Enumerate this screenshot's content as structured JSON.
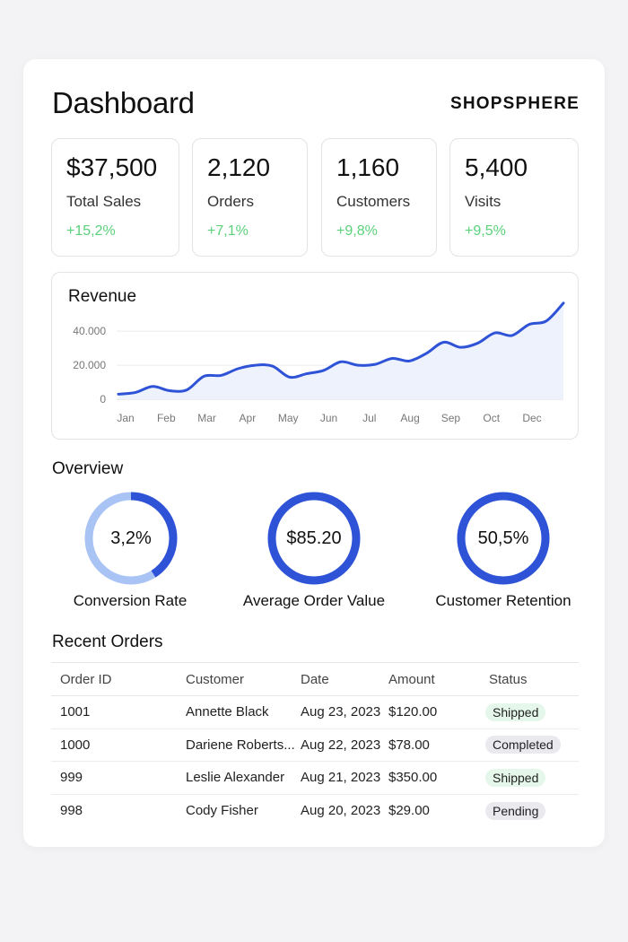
{
  "header": {
    "title": "Dashboard",
    "brand": "SHOPSPHERE"
  },
  "stats": [
    {
      "value": "$37,500",
      "label": "Total Sales",
      "change": "+15,2%"
    },
    {
      "value": "2,120",
      "label": "Orders",
      "change": "+7,1%"
    },
    {
      "value": "1,160",
      "label": "Customers",
      "change": "+9,8%"
    },
    {
      "value": "5,400",
      "label": "Visits",
      "change": "+9,5%"
    }
  ],
  "revenue": {
    "title": "Revenue"
  },
  "chart_data": {
    "type": "area",
    "title": "Revenue",
    "xlabel": "",
    "ylabel": "",
    "ylim": [
      0,
      48000
    ],
    "yticks": [
      "0",
      "20.000",
      "40.000"
    ],
    "ytick_values": [
      0,
      20000,
      40000
    ],
    "x_labels": [
      "Jan",
      "Feb",
      "Mar",
      "Apr",
      "May",
      "Jun",
      "Jul",
      "Aug",
      "Sep",
      "Oct",
      "Dec"
    ],
    "grid": true,
    "color": "#2f53d6",
    "fill_color": "#eef2fd",
    "points": [
      {
        "x": "Jan",
        "y": 3000
      },
      {
        "x": "Jan",
        "y": 4000
      },
      {
        "x": "Jan",
        "y": 7500
      },
      {
        "x": "Feb",
        "y": 5000
      },
      {
        "x": "Feb",
        "y": 5500
      },
      {
        "x": "Mar",
        "y": 13500
      },
      {
        "x": "Mar",
        "y": 14000
      },
      {
        "x": "Mar",
        "y": 18000
      },
      {
        "x": "Apr",
        "y": 20000
      },
      {
        "x": "Apr",
        "y": 19500
      },
      {
        "x": "May",
        "y": 13000
      },
      {
        "x": "May",
        "y": 15000
      },
      {
        "x": "May",
        "y": 17000
      },
      {
        "x": "Jun",
        "y": 22000
      },
      {
        "x": "Jun",
        "y": 20000
      },
      {
        "x": "Jun",
        "y": 20500
      },
      {
        "x": "Jul",
        "y": 24000
      },
      {
        "x": "Jul",
        "y": 22500
      },
      {
        "x": "Aug",
        "y": 27000
      },
      {
        "x": "Aug",
        "y": 33500
      },
      {
        "x": "Sep",
        "y": 30500
      },
      {
        "x": "Sep",
        "y": 33000
      },
      {
        "x": "Oct",
        "y": 39000
      },
      {
        "x": "Oct",
        "y": 37500
      },
      {
        "x": "Oct",
        "y": 44000
      },
      {
        "x": "Dec",
        "y": 46000
      },
      {
        "x": "Dec",
        "y": 56500
      }
    ]
  },
  "overview": {
    "title": "Overview",
    "metrics": [
      {
        "value": "3,2%",
        "label": "Conversion Rate",
        "fraction": 0.41,
        "track_color": "#a9c3f5",
        "color": "#2f53d6"
      },
      {
        "value": "$85.20",
        "label": "Average Order Value",
        "fraction": 1.0,
        "track_color": "#a9c3f5",
        "color": "#2f53d6"
      },
      {
        "value": "50,5%",
        "label": "Customer Retention",
        "fraction": 1.0,
        "track_color": "#a9c3f5",
        "color": "#2f53d6"
      }
    ]
  },
  "orders": {
    "title": "Recent Orders",
    "columns": [
      "Order ID",
      "Customer",
      "Date",
      "Amount",
      "Status"
    ],
    "rows": [
      {
        "id": "1001",
        "customer": "Annette Black",
        "date": "Aug 23, 2023",
        "amount": "$120.00",
        "status": "Shipped",
        "status_color": "#e5f7ea"
      },
      {
        "id": "1000",
        "customer": "Dariene Roberts...",
        "date": "Aug 22, 2023",
        "amount": "$78.00",
        "status": "Completed",
        "status_color": "#e9e9ee"
      },
      {
        "id": "999",
        "customer": "Leslie Alexander",
        "date": "Aug 21, 2023",
        "amount": "$350.00",
        "status": "Shipped",
        "status_color": "#e5f7ea"
      },
      {
        "id": "998",
        "customer": "Cody Fisher",
        "date": "Aug 20, 2023",
        "amount": "$29.00",
        "status": "Pending",
        "status_color": "#e9e9ee"
      }
    ]
  }
}
